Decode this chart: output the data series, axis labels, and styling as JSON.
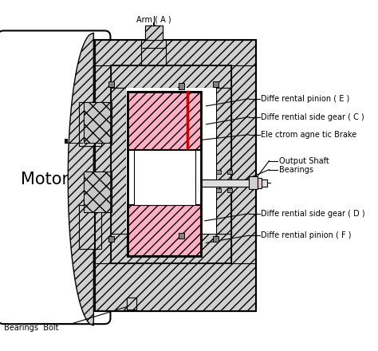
{
  "labels": {
    "arm": "Arm ( A )",
    "diff_pinion_e": "Diffe rental pinion ( E )",
    "diff_side_gear_c": "Diffe rential side gear ( C )",
    "em_brake": "Ele ctrom agne tic Brake",
    "output_shaft": "Output Shaft",
    "bearings": "Bearings",
    "diff_side_gear_d": "Diffe rential side gear ( D )",
    "diff_pinion_f": "Diffe rential pinion ( F )",
    "motor": "Motor",
    "bearings_bolt": "Bearings  Bolt"
  },
  "colors": {
    "white": "#ffffff",
    "hatch_gray": "#cccccc",
    "hatch_face": "#d8d8d8",
    "pink": "#ffb0c8",
    "pink_light": "#ffcce0",
    "red": "#dd0000",
    "black": "#000000",
    "cross_hatch": "#cccccc",
    "shaft_gray": "#e8e8e8"
  }
}
